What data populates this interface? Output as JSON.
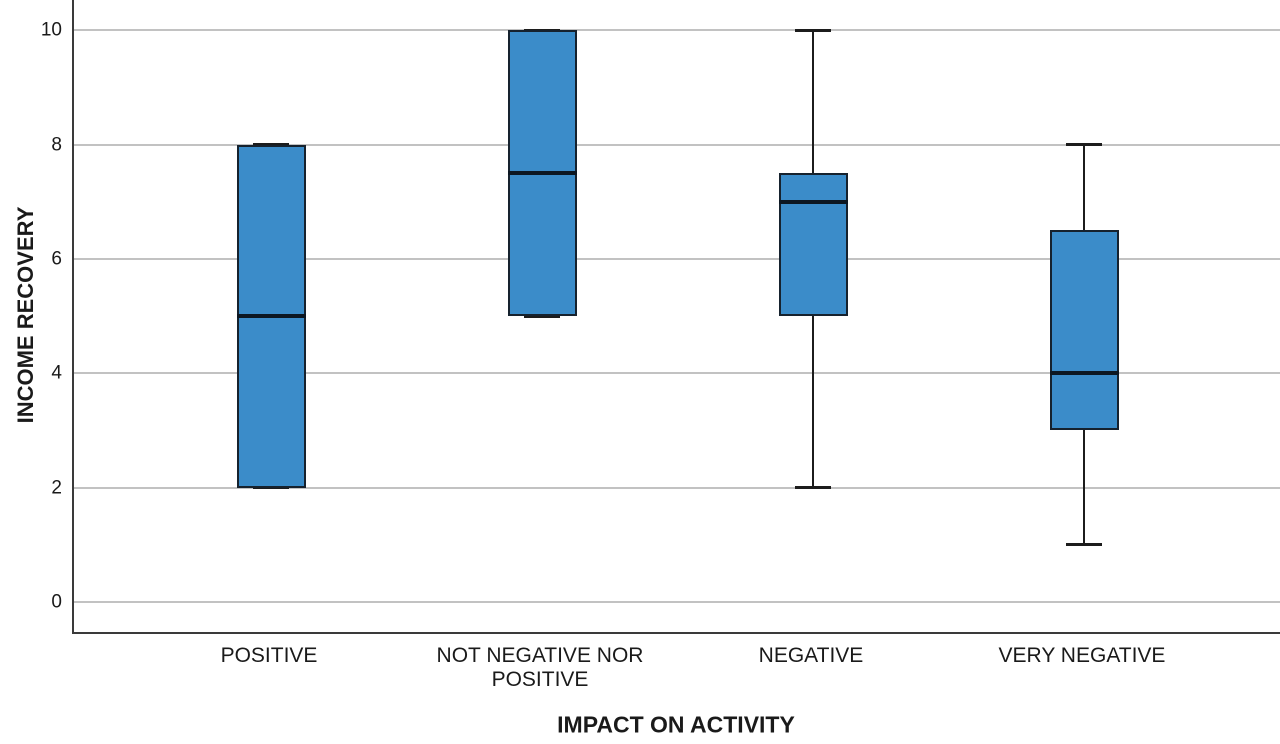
{
  "chart_data": {
    "type": "boxplot",
    "title": "",
    "xlabel": "IMPACT ON ACTIVITY",
    "ylabel": "INCOME RECOVERY",
    "yticks": [
      0,
      2,
      4,
      6,
      8,
      10
    ],
    "ylim": [
      -0.55,
      10.55
    ],
    "grid": "horizontal-at-yticks",
    "legend": "none",
    "categories": [
      "POSITIVE",
      "NOT NEGATIVE NOR POSITIVE",
      "NEGATIVE",
      "VERY NEGATIVE"
    ],
    "series": [
      {
        "category": "POSITIVE",
        "whisker_low": 2,
        "q1": 2,
        "median": 5,
        "q3": 8,
        "whisker_high": 8
      },
      {
        "category": "NOT NEGATIVE NOR POSITIVE",
        "whisker_low": 5,
        "q1": 5,
        "median": 7.5,
        "q3": 10,
        "whisker_high": 10
      },
      {
        "category": "NEGATIVE",
        "whisker_low": 2,
        "q1": 5,
        "median": 7,
        "q3": 7.5,
        "whisker_high": 10
      },
      {
        "category": "VERY NEGATIVE",
        "whisker_low": 1,
        "q1": 3,
        "median": 4,
        "q3": 6.5,
        "whisker_high": 8
      }
    ],
    "colors": {
      "box_fill": "#3b8cc9",
      "box_border": "#16222e",
      "median": "#0c1722",
      "whisker": "#1c1c1c",
      "gridline": "#c2c2c2",
      "axis": "#3a3a3a",
      "text": "#1a1a1a"
    }
  }
}
